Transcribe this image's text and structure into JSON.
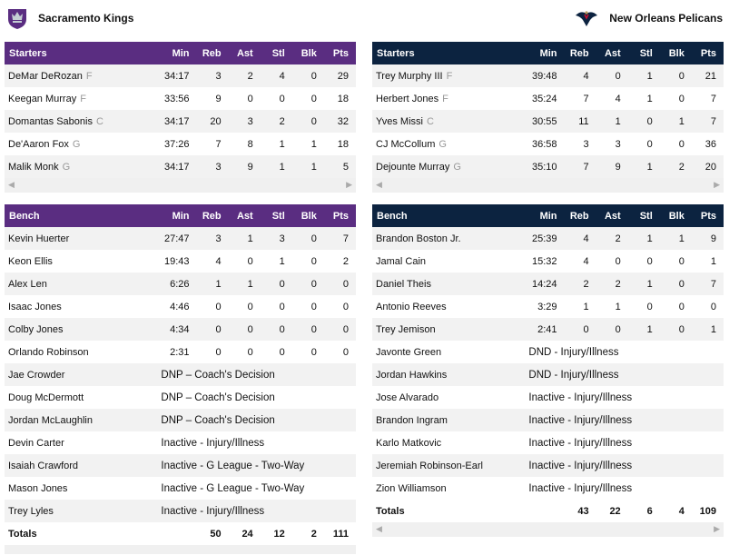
{
  "teams": {
    "home": {
      "name": "Sacramento Kings",
      "color": "#5A2D81",
      "logo": "kings-crown-logo"
    },
    "away": {
      "name": "New Orleans Pelicans",
      "color": "#0C2340",
      "logo": "pelican-logo"
    }
  },
  "columns": [
    "Min",
    "Reb",
    "Ast",
    "Stl",
    "Blk",
    "Pts"
  ],
  "kings": {
    "starters_label": "Starters",
    "starters": [
      {
        "name": "DeMar DeRozan",
        "pos": "F",
        "min": "34:17",
        "reb": "3",
        "ast": "2",
        "stl": "4",
        "blk": "0",
        "pts": "29"
      },
      {
        "name": "Keegan Murray",
        "pos": "F",
        "min": "33:56",
        "reb": "9",
        "ast": "0",
        "stl": "0",
        "blk": "0",
        "pts": "18"
      },
      {
        "name": "Domantas Sabonis",
        "pos": "C",
        "min": "34:17",
        "reb": "20",
        "ast": "3",
        "stl": "2",
        "blk": "0",
        "pts": "32"
      },
      {
        "name": "De'Aaron Fox",
        "pos": "G",
        "min": "37:26",
        "reb": "7",
        "ast": "8",
        "stl": "1",
        "blk": "1",
        "pts": "18"
      },
      {
        "name": "Malik Monk",
        "pos": "G",
        "min": "34:17",
        "reb": "3",
        "ast": "9",
        "stl": "1",
        "blk": "1",
        "pts": "5"
      }
    ],
    "bench_label": "Bench",
    "bench": [
      {
        "name": "Kevin Huerter",
        "min": "27:47",
        "reb": "3",
        "ast": "1",
        "stl": "3",
        "blk": "0",
        "pts": "7"
      },
      {
        "name": "Keon Ellis",
        "min": "19:43",
        "reb": "4",
        "ast": "0",
        "stl": "1",
        "blk": "0",
        "pts": "2"
      },
      {
        "name": "Alex Len",
        "min": "6:26",
        "reb": "1",
        "ast": "1",
        "stl": "0",
        "blk": "0",
        "pts": "0"
      },
      {
        "name": "Isaac Jones",
        "min": "4:46",
        "reb": "0",
        "ast": "0",
        "stl": "0",
        "blk": "0",
        "pts": "0"
      },
      {
        "name": "Colby Jones",
        "min": "4:34",
        "reb": "0",
        "ast": "0",
        "stl": "0",
        "blk": "0",
        "pts": "0"
      },
      {
        "name": "Orlando Robinson",
        "min": "2:31",
        "reb": "0",
        "ast": "0",
        "stl": "0",
        "blk": "0",
        "pts": "0"
      },
      {
        "name": "Jae Crowder",
        "note": "DNP – Coach's Decision"
      },
      {
        "name": "Doug McDermott",
        "note": "DNP – Coach's Decision"
      },
      {
        "name": "Jordan McLaughlin",
        "note": "DNP – Coach's Decision"
      },
      {
        "name": "Devin Carter",
        "note": "Inactive - Injury/Illness"
      },
      {
        "name": "Isaiah Crawford",
        "note": "Inactive - G League - Two-Way"
      },
      {
        "name": "Mason Jones",
        "note": "Inactive - G League - Two-Way"
      },
      {
        "name": "Trey Lyles",
        "note": "Inactive - Injury/Illness"
      }
    ],
    "totals": {
      "label": "Totals",
      "reb": "50",
      "ast": "24",
      "stl": "12",
      "blk": "2",
      "pts": "111"
    }
  },
  "pelicans": {
    "starters_label": "Starters",
    "starters": [
      {
        "name": "Trey Murphy III",
        "pos": "F",
        "min": "39:48",
        "reb": "4",
        "ast": "0",
        "stl": "1",
        "blk": "0",
        "pts": "21"
      },
      {
        "name": "Herbert Jones",
        "pos": "F",
        "min": "35:24",
        "reb": "7",
        "ast": "4",
        "stl": "1",
        "blk": "0",
        "pts": "7"
      },
      {
        "name": "Yves Missi",
        "pos": "C",
        "min": "30:55",
        "reb": "11",
        "ast": "1",
        "stl": "0",
        "blk": "1",
        "pts": "7"
      },
      {
        "name": "CJ McCollum",
        "pos": "G",
        "min": "36:58",
        "reb": "3",
        "ast": "3",
        "stl": "0",
        "blk": "0",
        "pts": "36"
      },
      {
        "name": "Dejounte Murray",
        "pos": "G",
        "min": "35:10",
        "reb": "7",
        "ast": "9",
        "stl": "1",
        "blk": "2",
        "pts": "20"
      }
    ],
    "bench_label": "Bench",
    "bench": [
      {
        "name": "Brandon Boston Jr.",
        "min": "25:39",
        "reb": "4",
        "ast": "2",
        "stl": "1",
        "blk": "1",
        "pts": "9"
      },
      {
        "name": "Jamal Cain",
        "min": "15:32",
        "reb": "4",
        "ast": "0",
        "stl": "0",
        "blk": "0",
        "pts": "1"
      },
      {
        "name": "Daniel Theis",
        "min": "14:24",
        "reb": "2",
        "ast": "2",
        "stl": "1",
        "blk": "0",
        "pts": "7"
      },
      {
        "name": "Antonio Reeves",
        "min": "3:29",
        "reb": "1",
        "ast": "1",
        "stl": "0",
        "blk": "0",
        "pts": "0"
      },
      {
        "name": "Trey Jemison",
        "min": "2:41",
        "reb": "0",
        "ast": "0",
        "stl": "1",
        "blk": "0",
        "pts": "1"
      },
      {
        "name": "Javonte Green",
        "note": "DND - Injury/Illness"
      },
      {
        "name": "Jordan Hawkins",
        "note": "DND - Injury/Illness"
      },
      {
        "name": "Jose Alvarado",
        "note": "Inactive - Injury/Illness"
      },
      {
        "name": "Brandon Ingram",
        "note": "Inactive - Injury/Illness"
      },
      {
        "name": "Karlo Matkovic",
        "note": "Inactive - Injury/Illness"
      },
      {
        "name": "Jeremiah Robinson-Earl",
        "note": "Inactive - Injury/Illness"
      },
      {
        "name": "Zion Williamson",
        "note": "Inactive - Injury/Illness"
      }
    ],
    "totals": {
      "label": "Totals",
      "reb": "43",
      "ast": "22",
      "stl": "6",
      "blk": "4",
      "pts": "109"
    }
  }
}
